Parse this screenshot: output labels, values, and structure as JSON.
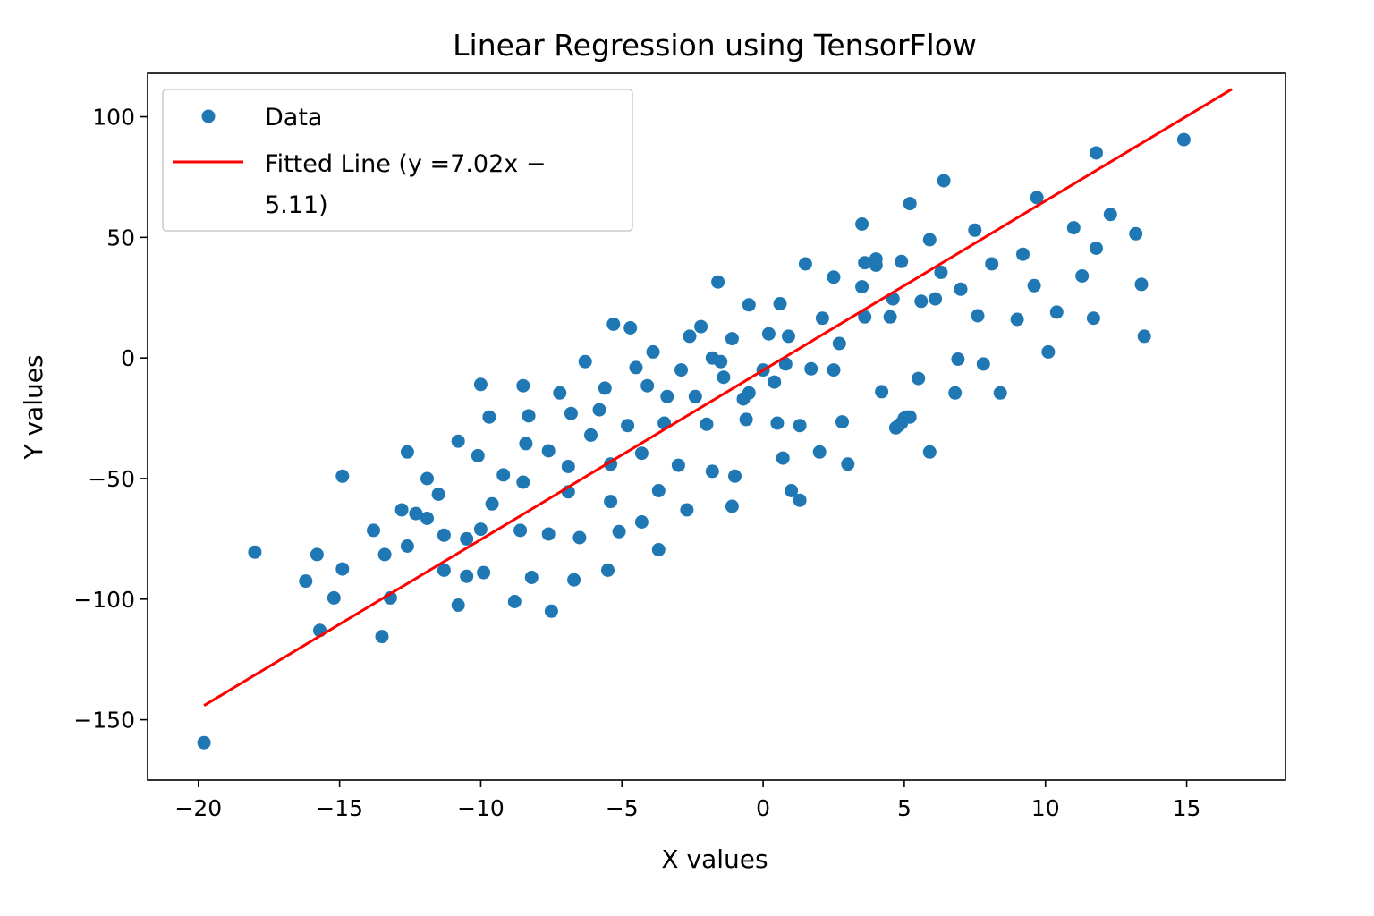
{
  "chart_data": {
    "type": "scatter",
    "title": "Linear Regression using TensorFlow",
    "xlabel": "X values",
    "ylabel": "Y values",
    "xlim": [
      -21.8,
      18.5
    ],
    "ylim": [
      -175,
      118
    ],
    "xticks": [
      -20,
      -15,
      -10,
      -5,
      0,
      5,
      10,
      15
    ],
    "yticks": [
      -150,
      -100,
      -50,
      0,
      50,
      100
    ],
    "xtick_labels": [
      "−20",
      "−15",
      "−10",
      "−5",
      "0",
      "5",
      "10",
      "15"
    ],
    "ytick_labels": [
      "−150",
      "−100",
      "−50",
      "0",
      "50",
      "100"
    ],
    "grid": false,
    "legend_placement": "top-left",
    "series": [
      {
        "name": "Data",
        "kind": "scatter",
        "color": "#1f77b4",
        "points": [
          [
            -19.8,
            -159.5
          ],
          [
            -18.0,
            -80.5
          ],
          [
            -16.2,
            -92.5
          ],
          [
            -15.8,
            -81.5
          ],
          [
            -15.7,
            -113
          ],
          [
            -15.2,
            -99.5
          ],
          [
            -14.9,
            -49
          ],
          [
            -14.9,
            -87.5
          ],
          [
            -13.8,
            -71.5
          ],
          [
            -13.5,
            -115.5
          ],
          [
            -13.4,
            -81.5
          ],
          [
            -13.2,
            -99.5
          ],
          [
            -12.8,
            -63
          ],
          [
            -12.6,
            -78
          ],
          [
            -12.6,
            -39
          ],
          [
            -12.3,
            -64.5
          ],
          [
            -11.9,
            -66.5
          ],
          [
            -11.9,
            -50
          ],
          [
            -11.5,
            -56.5
          ],
          [
            -11.3,
            -88
          ],
          [
            -11.3,
            -73.5
          ],
          [
            -10.8,
            -102.5
          ],
          [
            -10.8,
            -34.5
          ],
          [
            -10.5,
            -75
          ],
          [
            -10.5,
            -90.5
          ],
          [
            -10.1,
            -40.5
          ],
          [
            -10.0,
            -11
          ],
          [
            -10.0,
            -71
          ],
          [
            -9.9,
            -89
          ],
          [
            -9.7,
            -24.5
          ],
          [
            -9.6,
            -60.5
          ],
          [
            -9.2,
            -48.5
          ],
          [
            -8.8,
            -101
          ],
          [
            -8.6,
            -71.5
          ],
          [
            -8.5,
            -51.5
          ],
          [
            -8.5,
            -11.5
          ],
          [
            -8.4,
            -35.5
          ],
          [
            -8.3,
            -24
          ],
          [
            -8.2,
            -91
          ],
          [
            -7.6,
            -73
          ],
          [
            -7.6,
            -38.5
          ],
          [
            -7.5,
            -105
          ],
          [
            -7.2,
            -14.5
          ],
          [
            -6.9,
            -55.5
          ],
          [
            -6.9,
            -45
          ],
          [
            -6.8,
            -23
          ],
          [
            -6.7,
            -92
          ],
          [
            -6.5,
            -74.5
          ],
          [
            -6.3,
            -1.5
          ],
          [
            -6.1,
            -32
          ],
          [
            -5.8,
            -21.5
          ],
          [
            -5.6,
            -12.5
          ],
          [
            -5.5,
            -88
          ],
          [
            -5.4,
            -59.5
          ],
          [
            -5.4,
            -44
          ],
          [
            -5.3,
            14
          ],
          [
            -5.1,
            -72
          ],
          [
            -4.8,
            -28
          ],
          [
            -4.7,
            12.5
          ],
          [
            -4.5,
            -4
          ],
          [
            -4.3,
            -39.5
          ],
          [
            -4.3,
            -68
          ],
          [
            -4.1,
            -11.5
          ],
          [
            -3.9,
            2.5
          ],
          [
            -3.7,
            -79.5
          ],
          [
            -3.7,
            -55
          ],
          [
            -3.5,
            -27
          ],
          [
            -3.4,
            -16
          ],
          [
            -3.0,
            -44.5
          ],
          [
            -2.9,
            -5
          ],
          [
            -2.7,
            -63
          ],
          [
            -2.6,
            9
          ],
          [
            -2.4,
            -16
          ],
          [
            -2.2,
            13
          ],
          [
            -2.0,
            -27.5
          ],
          [
            -1.8,
            -47
          ],
          [
            -1.8,
            0
          ],
          [
            -1.6,
            31.5
          ],
          [
            -1.5,
            -1.5
          ],
          [
            -1.4,
            -8
          ],
          [
            -1.1,
            -61.5
          ],
          [
            -1.1,
            8
          ],
          [
            -1.0,
            -49
          ],
          [
            -0.7,
            -17
          ],
          [
            -0.6,
            -25.5
          ],
          [
            -0.5,
            22
          ],
          [
            -0.5,
            -14.5
          ],
          [
            0.0,
            -5
          ],
          [
            0.2,
            10
          ],
          [
            0.4,
            -10
          ],
          [
            0.5,
            -27
          ],
          [
            0.6,
            22.5
          ],
          [
            0.7,
            -41.5
          ],
          [
            0.8,
            -2.5
          ],
          [
            0.9,
            9
          ],
          [
            1.0,
            -55
          ],
          [
            1.3,
            -59
          ],
          [
            1.3,
            -28
          ],
          [
            1.5,
            39
          ],
          [
            1.7,
            -4.5
          ],
          [
            2.0,
            -39
          ],
          [
            2.1,
            16.5
          ],
          [
            2.5,
            -5
          ],
          [
            2.5,
            33.5
          ],
          [
            2.7,
            6
          ],
          [
            2.8,
            -26.5
          ],
          [
            3.0,
            -44
          ],
          [
            3.5,
            29.5
          ],
          [
            3.5,
            55.5
          ],
          [
            3.6,
            17
          ],
          [
            3.6,
            39.5
          ],
          [
            4.0,
            38.5
          ],
          [
            4.0,
            41
          ],
          [
            4.2,
            -14
          ],
          [
            4.5,
            17
          ],
          [
            4.6,
            24.5
          ],
          [
            4.7,
            -29
          ],
          [
            4.8,
            -28
          ],
          [
            4.9,
            40
          ],
          [
            4.9,
            -27
          ],
          [
            5.0,
            -25
          ],
          [
            5.1,
            -24.5
          ],
          [
            5.2,
            -24.5
          ],
          [
            5.2,
            64
          ],
          [
            5.5,
            -8.5
          ],
          [
            5.6,
            23.5
          ],
          [
            5.9,
            49
          ],
          [
            5.9,
            -39
          ],
          [
            6.1,
            24.5
          ],
          [
            6.3,
            35.5
          ],
          [
            6.4,
            73.5
          ],
          [
            6.8,
            -14.5
          ],
          [
            6.9,
            -0.5
          ],
          [
            7.0,
            28.5
          ],
          [
            7.5,
            53
          ],
          [
            7.6,
            17.5
          ],
          [
            7.8,
            -2.5
          ],
          [
            8.1,
            39
          ],
          [
            8.4,
            -14.5
          ],
          [
            9.0,
            16
          ],
          [
            9.2,
            43
          ],
          [
            9.6,
            30
          ],
          [
            9.7,
            66.5
          ],
          [
            10.1,
            2.5
          ],
          [
            10.4,
            19
          ],
          [
            11.0,
            54
          ],
          [
            11.3,
            34
          ],
          [
            11.7,
            16.5
          ],
          [
            11.8,
            45.5
          ],
          [
            11.8,
            85
          ],
          [
            12.3,
            59.5
          ],
          [
            13.2,
            51.5
          ],
          [
            13.4,
            30.5
          ],
          [
            13.5,
            9
          ],
          [
            14.9,
            90.5
          ]
        ]
      },
      {
        "name": "Fitted Line (y =7.02x − 5.11)",
        "kind": "line",
        "color": "#ff0000",
        "slope": 7.02,
        "intercept": -5.11,
        "x_range": [
          -19.8,
          16.6
        ]
      }
    ],
    "legend_labels": {
      "data": "Data",
      "line_1": "Fitted Line (y =7.02x −",
      "line_2": "5.11)"
    }
  }
}
